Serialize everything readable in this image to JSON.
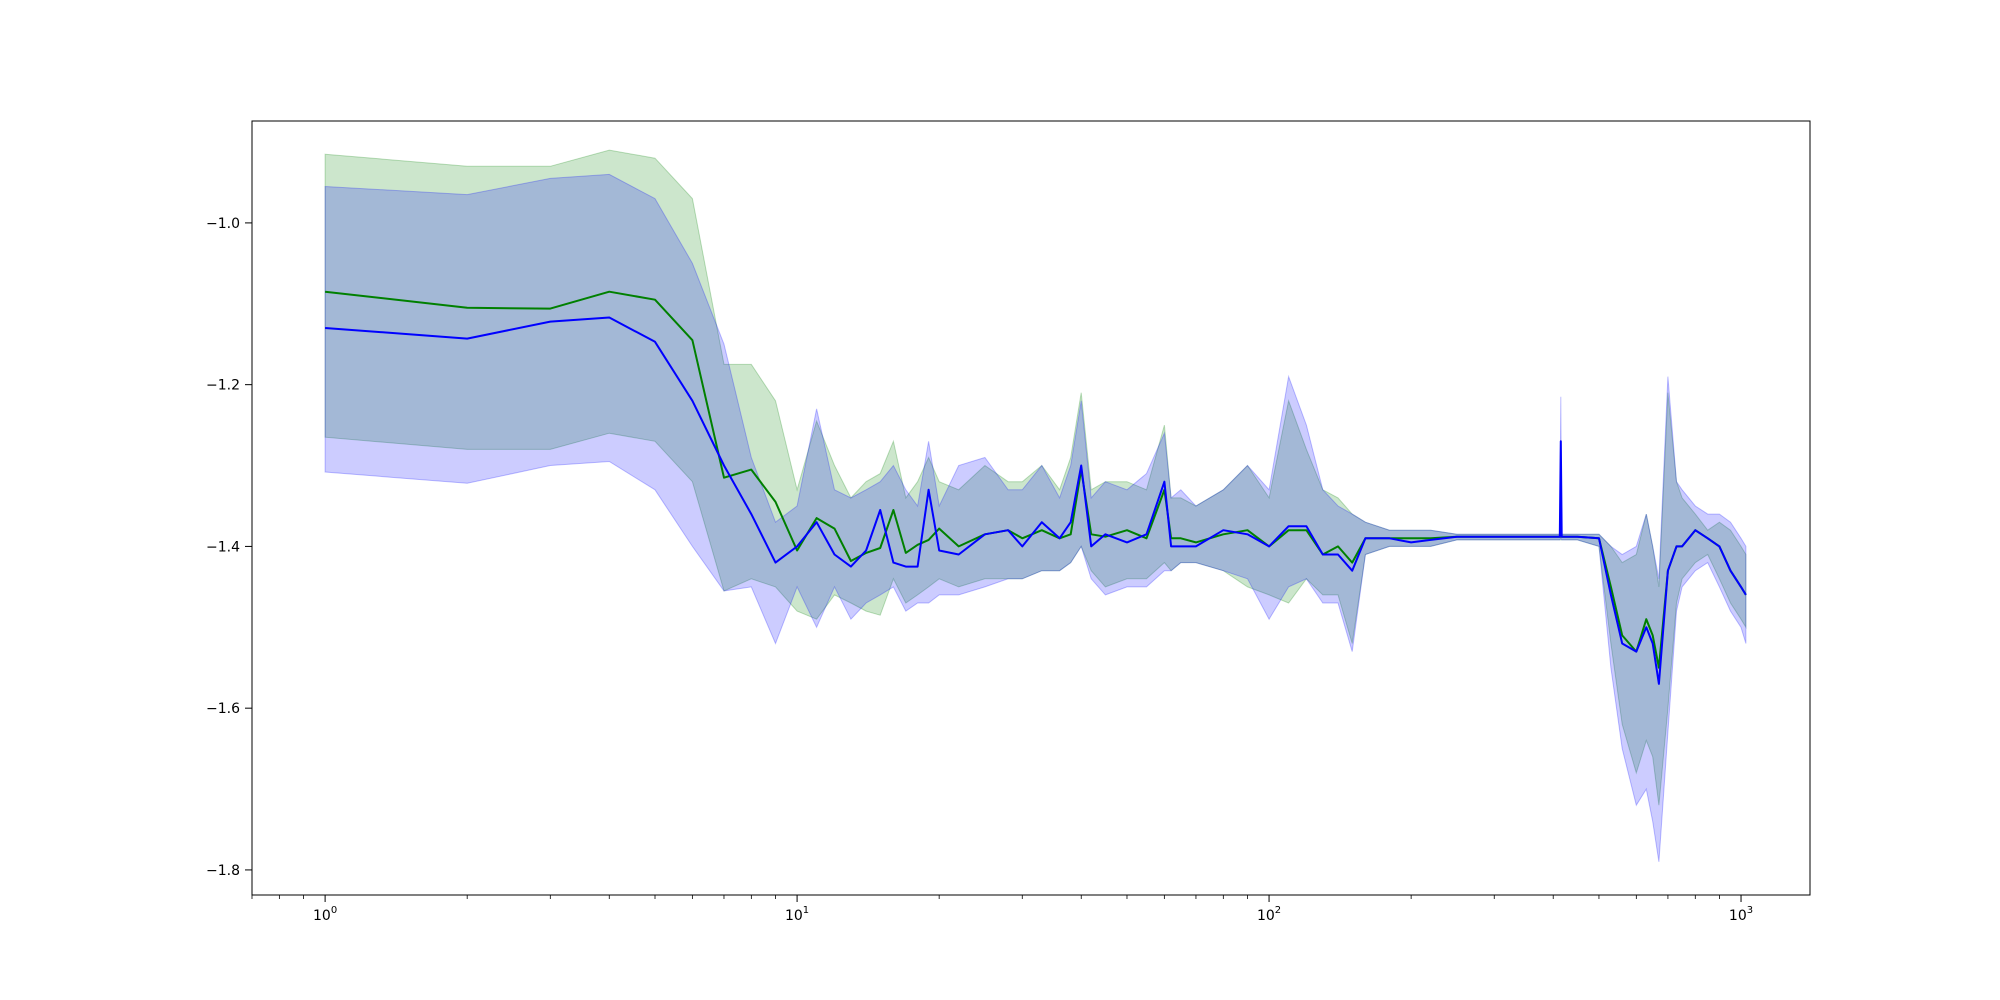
{
  "chart_data": {
    "type": "line",
    "title": "",
    "xlabel": "",
    "ylabel": "",
    "xscale": "log",
    "xlim": [
      0.7,
      1400
    ],
    "ylim": [
      -1.831,
      -0.874
    ],
    "grid": false,
    "legend": "none",
    "yticks": [
      -1.8,
      -1.6,
      -1.4,
      -1.2,
      -1.0
    ],
    "ytick_labels": [
      "−1.8",
      "−1.6",
      "−1.4",
      "−1.2",
      "−1.0"
    ],
    "xticks": [
      1,
      10,
      100,
      1000
    ],
    "xtick_base": "10",
    "xtick_exponents": [
      "0",
      "1",
      "2",
      "3"
    ],
    "colors": {
      "green_line": "#008000",
      "green_band": "#008000",
      "blue_line": "#0000ff",
      "blue_band": "#0000ff"
    },
    "series": [
      {
        "color": "green",
        "x": [
          1,
          2,
          3,
          4,
          5,
          6,
          7,
          8,
          9,
          10,
          11,
          12,
          13,
          14,
          15,
          16,
          17,
          18,
          19,
          20,
          22,
          25,
          28,
          30,
          33,
          36,
          38,
          40,
          42,
          45,
          50,
          55,
          60,
          62,
          65,
          70,
          80,
          90,
          100,
          110,
          120,
          130,
          140,
          150,
          160,
          180,
          200,
          220,
          250,
          270,
          300,
          350,
          400,
          420,
          450,
          500,
          530,
          560,
          600,
          630,
          650,
          670,
          700,
          730,
          750,
          800,
          850,
          900,
          950,
          1000,
          1024
        ],
        "y": [
          -1.085,
          -1.105,
          -1.106,
          -1.085,
          -1.095,
          -1.145,
          -1.315,
          -1.305,
          -1.345,
          -1.405,
          -1.365,
          -1.378,
          -1.418,
          -1.408,
          -1.402,
          -1.355,
          -1.408,
          -1.398,
          -1.392,
          -1.378,
          -1.4,
          -1.385,
          -1.38,
          -1.39,
          -1.38,
          -1.39,
          -1.385,
          -1.305,
          -1.385,
          -1.388,
          -1.38,
          -1.39,
          -1.33,
          -1.39,
          -1.39,
          -1.395,
          -1.385,
          -1.38,
          -1.4,
          -1.38,
          -1.38,
          -1.41,
          -1.4,
          -1.42,
          -1.39,
          -1.39,
          -1.39,
          -1.39,
          -1.388,
          -1.388,
          -1.388,
          -1.388,
          -1.388,
          -1.388,
          -1.388,
          -1.39,
          -1.45,
          -1.51,
          -1.53,
          -1.49,
          -1.51,
          -1.55,
          -1.43,
          -1.4,
          -1.4,
          -1.38,
          -1.39,
          -1.4,
          -1.43,
          -1.45,
          -1.46
        ]
      },
      {
        "color": "blue",
        "x": [
          1,
          2,
          3,
          4,
          5,
          6,
          7,
          8,
          9,
          10,
          11,
          12,
          13,
          14,
          15,
          16,
          17,
          18,
          19,
          20,
          22,
          25,
          28,
          30,
          33,
          36,
          38,
          40,
          42,
          45,
          50,
          55,
          60,
          62,
          65,
          70,
          80,
          90,
          100,
          110,
          120,
          130,
          140,
          150,
          160,
          180,
          200,
          220,
          250,
          270,
          300,
          350,
          400,
          413,
          415,
          417,
          420,
          450,
          500,
          530,
          560,
          600,
          630,
          650,
          670,
          700,
          730,
          750,
          800,
          850,
          900,
          950,
          1000,
          1024
        ],
        "y": [
          -1.13,
          -1.143,
          -1.122,
          -1.117,
          -1.147,
          -1.22,
          -1.3,
          -1.36,
          -1.42,
          -1.4,
          -1.37,
          -1.41,
          -1.425,
          -1.405,
          -1.355,
          -1.42,
          -1.425,
          -1.425,
          -1.33,
          -1.405,
          -1.41,
          -1.385,
          -1.38,
          -1.4,
          -1.37,
          -1.39,
          -1.37,
          -1.3,
          -1.4,
          -1.385,
          -1.395,
          -1.385,
          -1.32,
          -1.4,
          -1.4,
          -1.4,
          -1.38,
          -1.385,
          -1.4,
          -1.375,
          -1.375,
          -1.41,
          -1.41,
          -1.43,
          -1.39,
          -1.39,
          -1.395,
          -1.392,
          -1.388,
          -1.388,
          -1.388,
          -1.388,
          -1.388,
          -1.388,
          -1.27,
          -1.388,
          -1.388,
          -1.388,
          -1.39,
          -1.46,
          -1.52,
          -1.53,
          -1.5,
          -1.52,
          -1.57,
          -1.43,
          -1.4,
          -1.4,
          -1.38,
          -1.39,
          -1.4,
          -1.43,
          -1.45,
          -1.46
        ]
      }
    ],
    "bands": [
      {
        "color": "green",
        "x": [
          1,
          2,
          3,
          4,
          5,
          6,
          7,
          8,
          9,
          10,
          11,
          12,
          13,
          14,
          15,
          16,
          17,
          18,
          19,
          20,
          22,
          25,
          28,
          30,
          33,
          36,
          38,
          40,
          42,
          45,
          50,
          55,
          60,
          62,
          65,
          70,
          80,
          90,
          100,
          110,
          120,
          130,
          140,
          150,
          160,
          180,
          200,
          220,
          250,
          270,
          300,
          350,
          400,
          450,
          500,
          530,
          560,
          600,
          630,
          650,
          670,
          700,
          730,
          750,
          800,
          850,
          900,
          950,
          1000,
          1024
        ],
        "upper": [
          -0.915,
          -0.93,
          -0.93,
          -0.91,
          -0.92,
          -0.97,
          -1.175,
          -1.175,
          -1.22,
          -1.33,
          -1.245,
          -1.3,
          -1.34,
          -1.32,
          -1.31,
          -1.27,
          -1.34,
          -1.32,
          -1.29,
          -1.32,
          -1.33,
          -1.3,
          -1.32,
          -1.32,
          -1.3,
          -1.33,
          -1.29,
          -1.21,
          -1.33,
          -1.32,
          -1.32,
          -1.33,
          -1.25,
          -1.34,
          -1.34,
          -1.35,
          -1.33,
          -1.3,
          -1.34,
          -1.22,
          -1.28,
          -1.33,
          -1.34,
          -1.36,
          -1.37,
          -1.38,
          -1.38,
          -1.38,
          -1.385,
          -1.385,
          -1.385,
          -1.385,
          -1.385,
          -1.385,
          -1.385,
          -1.4,
          -1.42,
          -1.41,
          -1.36,
          -1.4,
          -1.45,
          -1.21,
          -1.32,
          -1.34,
          -1.36,
          -1.38,
          -1.37,
          -1.38,
          -1.4,
          -1.41
        ],
        "lower": [
          -1.265,
          -1.28,
          -1.28,
          -1.26,
          -1.27,
          -1.32,
          -1.455,
          -1.44,
          -1.45,
          -1.48,
          -1.49,
          -1.46,
          -1.47,
          -1.48,
          -1.485,
          -1.44,
          -1.47,
          -1.46,
          -1.45,
          -1.44,
          -1.45,
          -1.44,
          -1.44,
          -1.44,
          -1.43,
          -1.43,
          -1.42,
          -1.4,
          -1.43,
          -1.45,
          -1.44,
          -1.44,
          -1.42,
          -1.43,
          -1.42,
          -1.42,
          -1.43,
          -1.45,
          -1.46,
          -1.47,
          -1.44,
          -1.46,
          -1.46,
          -1.52,
          -1.41,
          -1.4,
          -1.4,
          -1.4,
          -1.392,
          -1.392,
          -1.392,
          -1.392,
          -1.392,
          -1.392,
          -1.4,
          -1.52,
          -1.62,
          -1.68,
          -1.64,
          -1.66,
          -1.72,
          -1.6,
          -1.47,
          -1.44,
          -1.42,
          -1.41,
          -1.44,
          -1.47,
          -1.49,
          -1.5
        ]
      },
      {
        "color": "blue",
        "x": [
          1,
          2,
          3,
          4,
          5,
          6,
          7,
          8,
          9,
          10,
          11,
          12,
          13,
          14,
          15,
          16,
          17,
          18,
          19,
          20,
          22,
          25,
          28,
          30,
          33,
          36,
          38,
          40,
          42,
          45,
          50,
          55,
          60,
          62,
          65,
          70,
          80,
          90,
          100,
          110,
          120,
          130,
          140,
          150,
          160,
          180,
          200,
          220,
          250,
          270,
          300,
          350,
          400,
          413,
          415,
          417,
          420,
          450,
          500,
          530,
          560,
          600,
          630,
          650,
          670,
          700,
          730,
          750,
          800,
          850,
          900,
          950,
          1000,
          1024
        ],
        "upper": [
          -0.955,
          -0.965,
          -0.945,
          -0.94,
          -0.97,
          -1.05,
          -1.15,
          -1.29,
          -1.37,
          -1.35,
          -1.23,
          -1.33,
          -1.34,
          -1.33,
          -1.32,
          -1.3,
          -1.33,
          -1.35,
          -1.27,
          -1.35,
          -1.3,
          -1.29,
          -1.33,
          -1.33,
          -1.3,
          -1.34,
          -1.3,
          -1.22,
          -1.34,
          -1.32,
          -1.33,
          -1.31,
          -1.26,
          -1.34,
          -1.33,
          -1.35,
          -1.33,
          -1.3,
          -1.33,
          -1.19,
          -1.25,
          -1.33,
          -1.35,
          -1.36,
          -1.37,
          -1.38,
          -1.38,
          -1.38,
          -1.385,
          -1.385,
          -1.385,
          -1.385,
          -1.385,
          -1.385,
          -1.215,
          -1.385,
          -1.385,
          -1.385,
          -1.385,
          -1.4,
          -1.41,
          -1.4,
          -1.36,
          -1.4,
          -1.44,
          -1.19,
          -1.32,
          -1.33,
          -1.35,
          -1.36,
          -1.36,
          -1.37,
          -1.39,
          -1.4
        ],
        "lower": [
          -1.308,
          -1.322,
          -1.3,
          -1.295,
          -1.33,
          -1.4,
          -1.455,
          -1.45,
          -1.52,
          -1.45,
          -1.5,
          -1.45,
          -1.49,
          -1.47,
          -1.46,
          -1.45,
          -1.48,
          -1.47,
          -1.47,
          -1.46,
          -1.46,
          -1.45,
          -1.44,
          -1.44,
          -1.43,
          -1.43,
          -1.42,
          -1.4,
          -1.44,
          -1.46,
          -1.45,
          -1.45,
          -1.43,
          -1.43,
          -1.42,
          -1.42,
          -1.43,
          -1.44,
          -1.49,
          -1.45,
          -1.44,
          -1.47,
          -1.47,
          -1.53,
          -1.41,
          -1.4,
          -1.4,
          -1.4,
          -1.392,
          -1.392,
          -1.392,
          -1.392,
          -1.392,
          -1.392,
          -1.39,
          -1.392,
          -1.392,
          -1.392,
          -1.4,
          -1.55,
          -1.65,
          -1.72,
          -1.7,
          -1.74,
          -1.79,
          -1.63,
          -1.48,
          -1.45,
          -1.43,
          -1.42,
          -1.45,
          -1.48,
          -1.5,
          -1.52
        ]
      }
    ]
  }
}
